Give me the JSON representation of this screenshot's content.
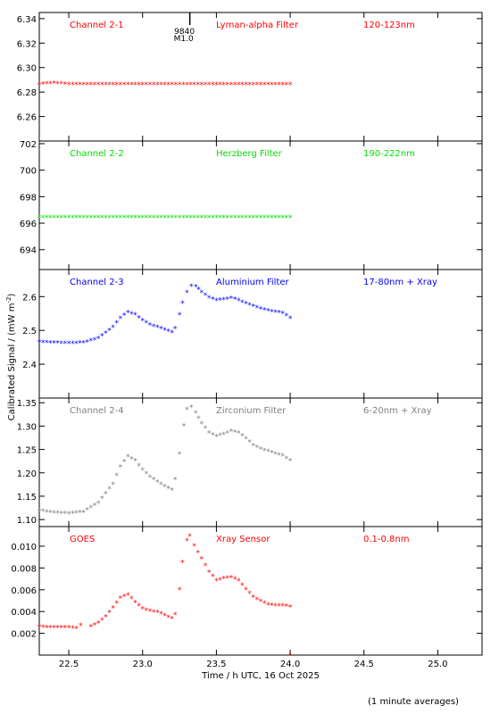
{
  "figure": {
    "ylabel": "Calibrated Signal / (mW m",
    "ylabel_exp": "-2",
    "ylabel_close": ")",
    "xlabel": "Time / h UTC, 16 Oct 2025",
    "footnote": "(1 minute averages)",
    "marker_label_1": "9840",
    "marker_label_2": "M1.0"
  },
  "chart_data": [
    {
      "type": "scatter",
      "channel": "Channel 2-1",
      "filter": "Lyman-alpha Filter",
      "band": "120-123nm",
      "color": "#ff0000",
      "ylim": [
        6.24,
        6.345
      ],
      "yticks": [
        6.26,
        6.28,
        6.3,
        6.32,
        6.34
      ],
      "ytick_decimals": 2,
      "series": [
        {
          "x": [
            22.3,
            22.4,
            22.5,
            22.6,
            22.8,
            23.0,
            23.2,
            23.4,
            23.6,
            23.8,
            24.0
          ],
          "y": [
            6.286,
            6.287,
            6.286,
            6.286,
            6.286,
            6.286,
            6.286,
            6.286,
            6.286,
            6.286,
            6.286
          ]
        }
      ]
    },
    {
      "type": "scatter",
      "channel": "Channel 2-2",
      "filter": "Herzberg Filter",
      "band": "190-222nm",
      "color": "#00e000",
      "ylim": [
        692.5,
        702.2
      ],
      "yticks": [
        694,
        696,
        698,
        700,
        702
      ],
      "ytick_decimals": 0,
      "series": [
        {
          "x": [
            22.3,
            22.5,
            22.7,
            22.9,
            23.1,
            23.3,
            23.5,
            23.7,
            23.9,
            24.0
          ],
          "y": [
            696.4,
            696.4,
            696.4,
            696.4,
            696.4,
            696.4,
            696.4,
            696.4,
            696.4,
            696.4
          ]
        }
      ]
    },
    {
      "type": "scatter",
      "channel": "Channel 2-3",
      "filter": "Aluminium Filter",
      "band": "17-80nm + Xray",
      "color": "#0000ff",
      "ylim": [
        2.3,
        2.68
      ],
      "yticks": [
        2.4,
        2.5,
        2.6
      ],
      "ytick_decimals": 1,
      "series": [
        {
          "x": [
            22.3,
            22.4,
            22.5,
            22.6,
            22.7,
            22.8,
            22.85,
            22.9,
            22.95,
            23.0,
            23.05,
            23.1,
            23.15,
            23.2,
            23.22,
            23.25,
            23.27,
            23.3,
            23.33,
            23.36,
            23.4,
            23.45,
            23.5,
            23.55,
            23.6,
            23.65,
            23.7,
            23.75,
            23.8,
            23.85,
            23.9,
            23.95,
            24.0
          ],
          "y": [
            2.465,
            2.462,
            2.461,
            2.462,
            2.475,
            2.508,
            2.535,
            2.552,
            2.545,
            2.528,
            2.515,
            2.508,
            2.5,
            2.493,
            2.505,
            2.545,
            2.58,
            2.612,
            2.63,
            2.628,
            2.612,
            2.595,
            2.588,
            2.59,
            2.594,
            2.588,
            2.578,
            2.57,
            2.562,
            2.557,
            2.553,
            2.55,
            2.535
          ]
        }
      ]
    },
    {
      "type": "scatter",
      "channel": "Channel 2-4",
      "filter": "Zirconium Filter",
      "band": "6-20nm + Xray",
      "color": "#808080",
      "ylim": [
        1.085,
        1.36
      ],
      "yticks": [
        1.1,
        1.15,
        1.2,
        1.25,
        1.3,
        1.35
      ],
      "ytick_decimals": 2,
      "series": [
        {
          "x": [
            22.3,
            22.4,
            22.5,
            22.6,
            22.7,
            22.8,
            22.85,
            22.9,
            22.95,
            23.0,
            23.05,
            23.1,
            23.15,
            23.2,
            23.22,
            23.25,
            23.28,
            23.3,
            23.33,
            23.36,
            23.4,
            23.45,
            23.5,
            23.55,
            23.6,
            23.65,
            23.7,
            23.75,
            23.8,
            23.85,
            23.9,
            23.95,
            24.0
          ],
          "y": [
            1.118,
            1.114,
            1.112,
            1.115,
            1.135,
            1.175,
            1.212,
            1.234,
            1.225,
            1.205,
            1.19,
            1.18,
            1.17,
            1.162,
            1.185,
            1.24,
            1.3,
            1.335,
            1.34,
            1.328,
            1.305,
            1.285,
            1.277,
            1.282,
            1.288,
            1.285,
            1.272,
            1.258,
            1.25,
            1.245,
            1.24,
            1.236,
            1.225
          ]
        }
      ]
    },
    {
      "type": "scatter",
      "channel": "GOES",
      "filter": "Xray Sensor",
      "band": "0.1-0.8nm",
      "color": "#ff0000",
      "ylim": [
        0.0,
        0.0118
      ],
      "yticks": [
        0.002,
        0.004,
        0.006,
        0.008,
        0.01
      ],
      "ytick_decimals": 3,
      "series": [
        {
          "x": [
            22.3,
            22.35,
            22.4,
            22.45,
            22.5,
            22.55,
            22.58
          ],
          "y": [
            0.0026,
            0.0025,
            0.0025,
            0.0025,
            0.0025,
            0.0024,
            0.0027
          ]
        },
        {
          "x": [
            22.65,
            22.7,
            22.75,
            22.8,
            22.85,
            22.9,
            22.95,
            23.0,
            23.05,
            23.1,
            23.15,
            23.2,
            23.22,
            23.25,
            23.27,
            23.3,
            23.32,
            23.35,
            23.4,
            23.45,
            23.5,
            23.55,
            23.6,
            23.65,
            23.7,
            23.75,
            23.8,
            23.85,
            23.9,
            23.95,
            24.0
          ],
          "y": [
            0.0026,
            0.0029,
            0.0035,
            0.0043,
            0.0052,
            0.0055,
            0.0048,
            0.0042,
            0.004,
            0.0039,
            0.0036,
            0.0033,
            0.0037,
            0.006,
            0.0085,
            0.0105,
            0.0109,
            0.01,
            0.0088,
            0.0076,
            0.0068,
            0.007,
            0.0071,
            0.0068,
            0.006,
            0.0053,
            0.0049,
            0.0046,
            0.0045,
            0.0045,
            0.0044
          ]
        }
      ]
    }
  ],
  "x_axis": {
    "xlim": [
      22.3,
      25.3
    ],
    "ticks": [
      22.5,
      23.0,
      23.5,
      24.0,
      24.5,
      25.0
    ],
    "tick_labels": [
      "22.5",
      "23.0",
      "23.5",
      "24.0",
      "24.5",
      "25.0"
    ],
    "marker_x": 23.32
  }
}
